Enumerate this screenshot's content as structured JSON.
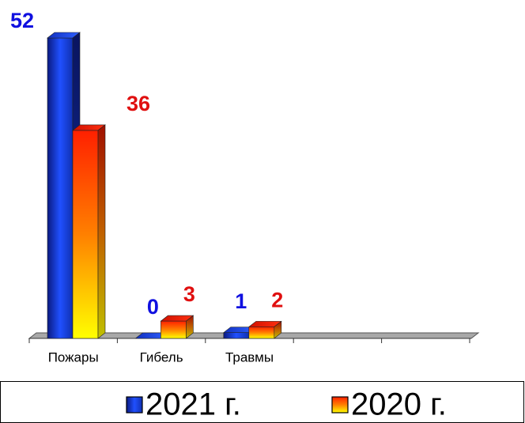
{
  "chart_data": {
    "type": "bar",
    "categories": [
      "Пожары",
      "Гибель",
      "Травмы",
      null,
      null
    ],
    "series": [
      {
        "name": "2021 г.",
        "color": "#1a3fd8",
        "values": [
          52,
          0,
          1,
          null,
          null
        ]
      },
      {
        "name": "2020 г.",
        "color": "#ff2a00",
        "values": [
          36,
          3,
          2,
          null,
          null
        ]
      }
    ],
    "value_label_colors": [
      "#1010e0",
      "#e01010"
    ]
  }
}
